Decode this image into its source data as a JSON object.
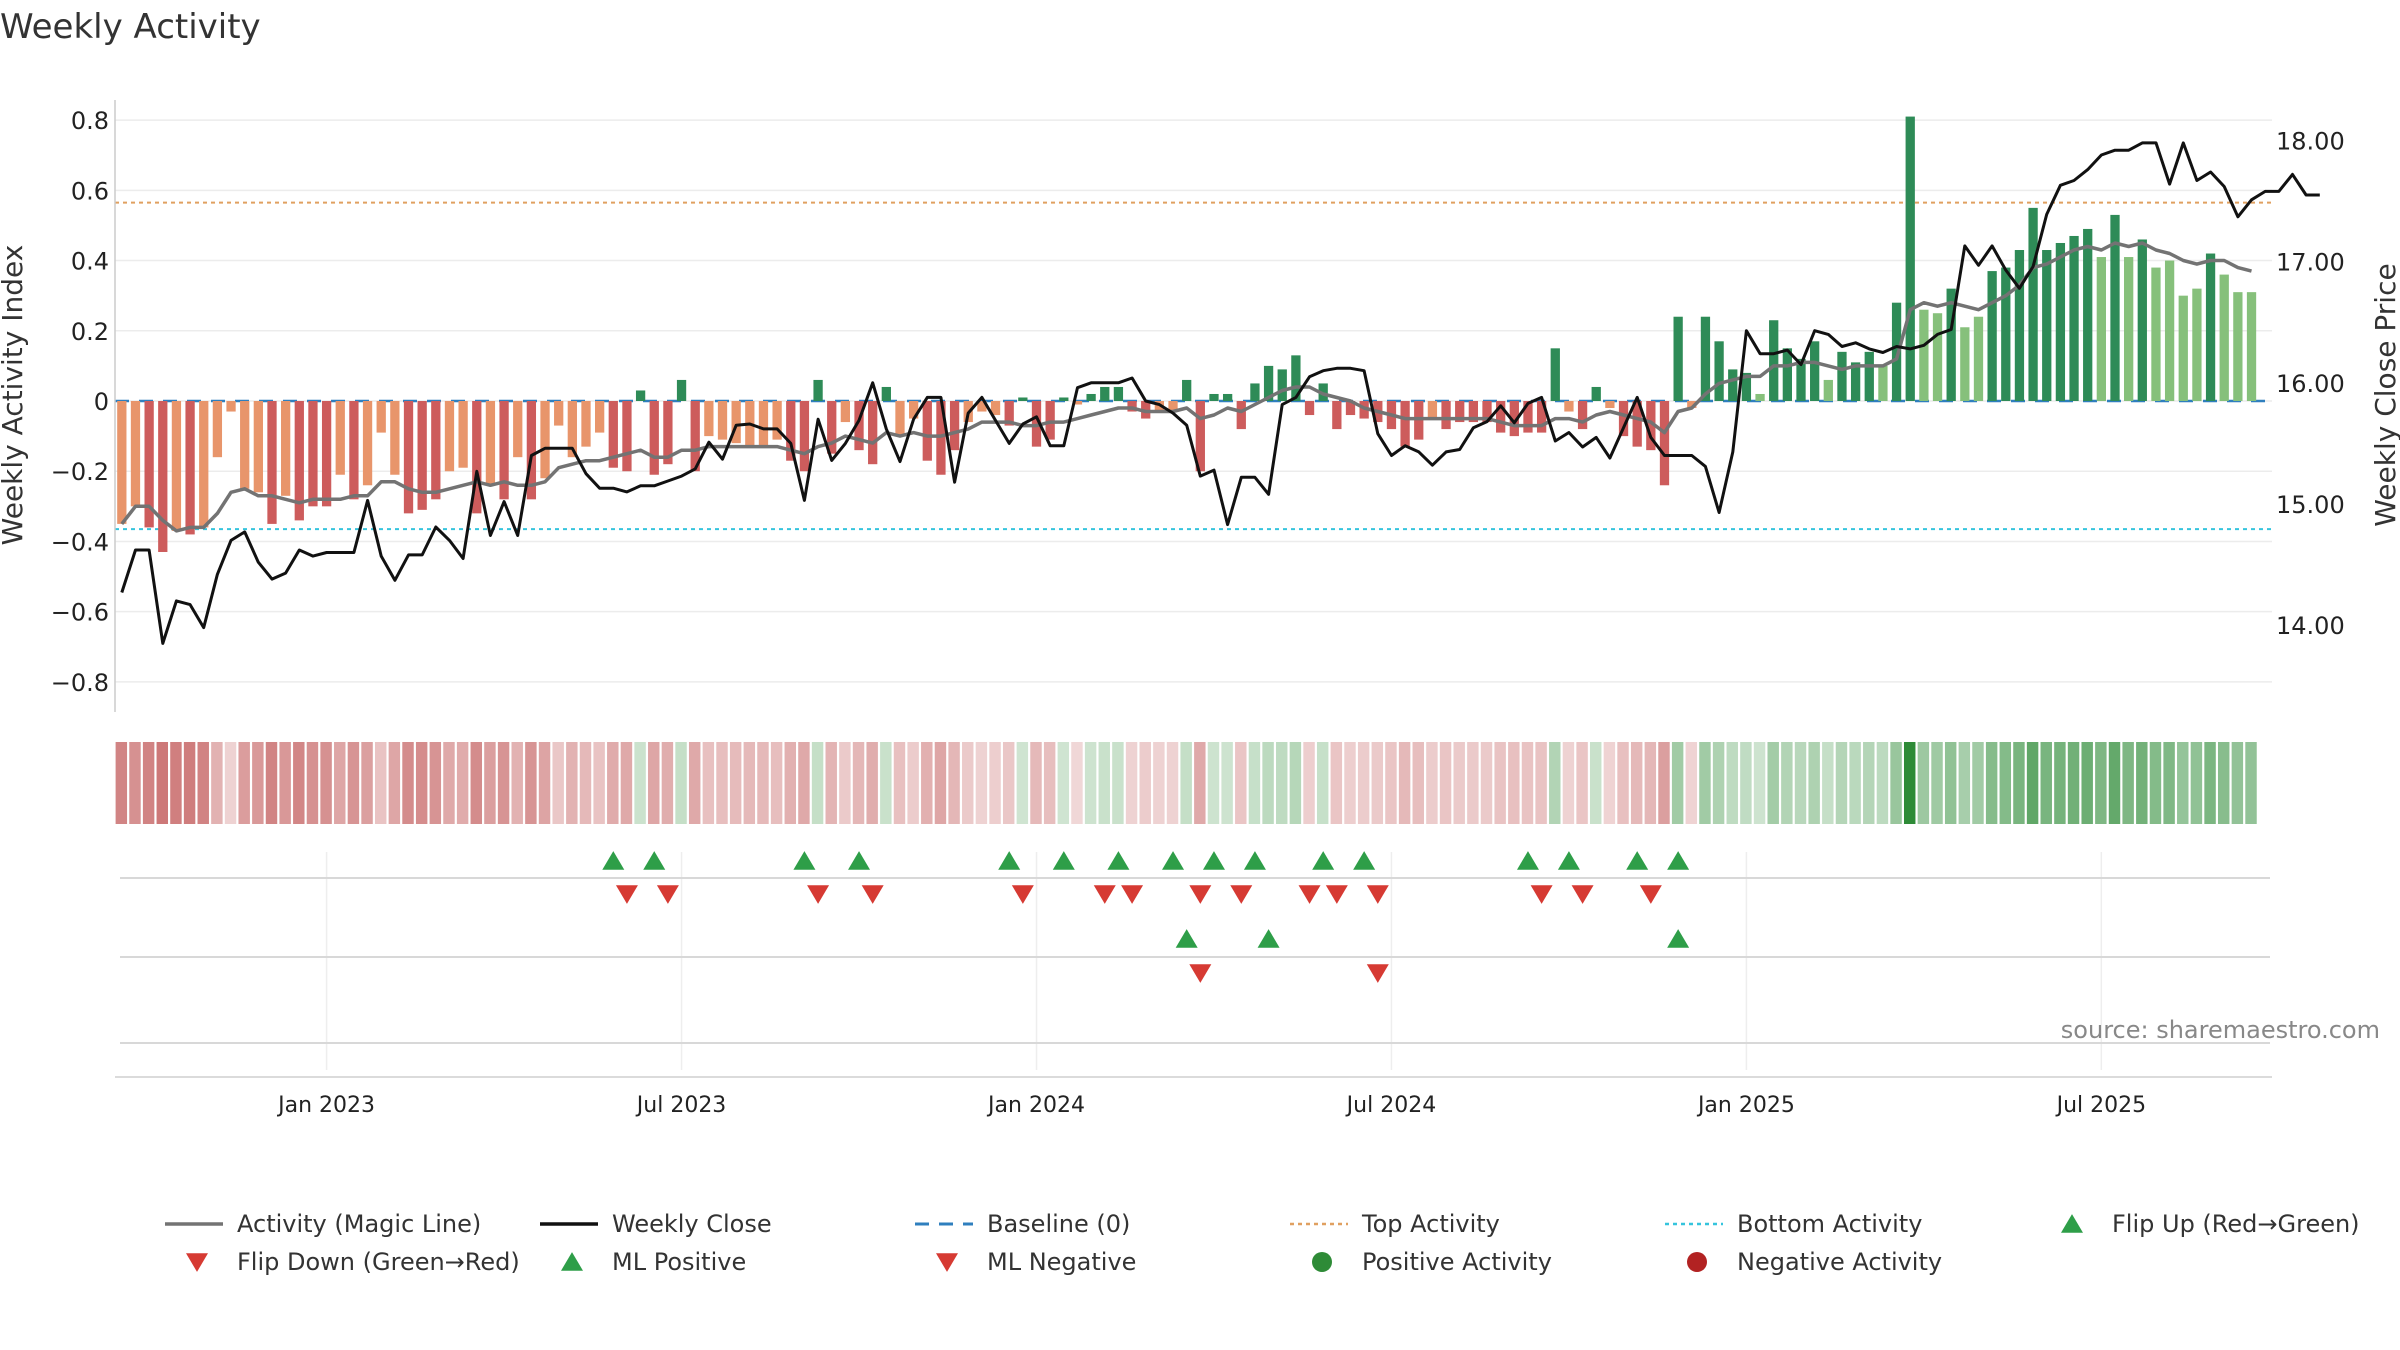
{
  "chart_data": {
    "type": "bar",
    "title": "Weekly Activity",
    "ylabel": "Weekly Activity Index",
    "y2label": "Weekly Close Price",
    "source": "source: sharemaestro.com",
    "ylim": [
      -0.88,
      0.88
    ],
    "y2lim": [
      13.3,
      18.4
    ],
    "yticks": [
      {
        "v": 0.8,
        "label": "0.8"
      },
      {
        "v": 0.6,
        "label": "0.6"
      },
      {
        "v": 0.4,
        "label": "0.4"
      },
      {
        "v": 0.2,
        "label": "0.2"
      },
      {
        "v": 0,
        "label": "0"
      },
      {
        "v": -0.2,
        "label": "−0.2"
      },
      {
        "v": -0.4,
        "label": "−0.4"
      },
      {
        "v": -0.6,
        "label": "−0.6"
      },
      {
        "v": -0.8,
        "label": "−0.8"
      }
    ],
    "y2ticks": [
      {
        "v": 18,
        "label": "18.00"
      },
      {
        "v": 17,
        "label": "17.00"
      },
      {
        "v": 16,
        "label": "16.00"
      },
      {
        "v": 15,
        "label": "15.00"
      },
      {
        "v": 14,
        "label": "14.00"
      }
    ],
    "xticks": [
      {
        "week": 15,
        "label": "Jan 2023"
      },
      {
        "week": 41,
        "label": "Jul 2023"
      },
      {
        "week": 67,
        "label": "Jan 2024"
      },
      {
        "week": 93,
        "label": "Jul 2024"
      },
      {
        "week": 119,
        "label": "Jan 2025"
      },
      {
        "week": 145,
        "label": "Jul 2025"
      }
    ],
    "weeks": 158,
    "activity": [
      -0.35,
      -0.3,
      -0.36,
      -0.43,
      -0.37,
      -0.38,
      -0.36,
      -0.16,
      -0.03,
      -0.25,
      -0.26,
      -0.35,
      -0.27,
      -0.34,
      -0.3,
      -0.3,
      -0.21,
      -0.28,
      -0.24,
      -0.09,
      -0.21,
      -0.32,
      -0.31,
      -0.28,
      -0.2,
      -0.19,
      -0.32,
      -0.24,
      -0.28,
      -0.16,
      -0.28,
      -0.22,
      -0.07,
      -0.16,
      -0.13,
      -0.09,
      -0.19,
      -0.2,
      0.03,
      -0.21,
      -0.18,
      0.06,
      -0.2,
      -0.1,
      -0.11,
      -0.12,
      -0.13,
      -0.13,
      -0.11,
      -0.17,
      -0.2,
      0.06,
      -0.15,
      -0.06,
      -0.14,
      -0.18,
      0.04,
      -0.1,
      -0.05,
      -0.17,
      -0.21,
      -0.14,
      -0.06,
      -0.03,
      -0.04,
      -0.07,
      0.01,
      -0.13,
      -0.11,
      0.01,
      -0.01,
      0.02,
      0.04,
      0.04,
      -0.03,
      -0.05,
      -0.03,
      -0.03,
      0.06,
      -0.2,
      0.02,
      0.02,
      -0.08,
      0.05,
      0.1,
      0.09,
      0.13,
      -0.04,
      0.05,
      -0.08,
      -0.04,
      -0.05,
      -0.06,
      -0.08,
      -0.13,
      -0.11,
      -0.05,
      -0.08,
      -0.06,
      -0.06,
      -0.06,
      -0.09,
      -0.1,
      -0.09,
      -0.09,
      0.15,
      -0.03,
      -0.08,
      0.04,
      -0.02,
      -0.1,
      -0.13,
      -0.14,
      -0.24,
      0.24,
      -0.02,
      0.24,
      0.17,
      0.09,
      0.08,
      0.02,
      0.23,
      0.15,
      0.12,
      0.17,
      0.06,
      0.14,
      0.11,
      0.14,
      0.1,
      0.28,
      0.81,
      0.26,
      0.25,
      0.32,
      0.21,
      0.24,
      0.37,
      0.38,
      0.43,
      0.55,
      0.43,
      0.45,
      0.47,
      0.49,
      0.41,
      0.53,
      0.41,
      0.46,
      0.38,
      0.4,
      0.3,
      0.32,
      0.42,
      0.36,
      0.31,
      0.31
    ],
    "magic_line": [
      -0.35,
      -0.3,
      -0.3,
      -0.34,
      -0.37,
      -0.36,
      -0.36,
      -0.32,
      -0.26,
      -0.25,
      -0.27,
      -0.27,
      -0.28,
      -0.29,
      -0.28,
      -0.28,
      -0.28,
      -0.27,
      -0.27,
      -0.23,
      -0.23,
      -0.25,
      -0.26,
      -0.26,
      -0.25,
      -0.24,
      -0.23,
      -0.24,
      -0.23,
      -0.24,
      -0.24,
      -0.23,
      -0.19,
      -0.18,
      -0.17,
      -0.17,
      -0.16,
      -0.15,
      -0.14,
      -0.16,
      -0.16,
      -0.14,
      -0.14,
      -0.13,
      -0.13,
      -0.13,
      -0.13,
      -0.13,
      -0.13,
      -0.14,
      -0.15,
      -0.13,
      -0.12,
      -0.1,
      -0.11,
      -0.12,
      -0.09,
      -0.1,
      -0.09,
      -0.1,
      -0.1,
      -0.09,
      -0.08,
      -0.06,
      -0.06,
      -0.06,
      -0.07,
      -0.07,
      -0.06,
      -0.06,
      -0.05,
      -0.04,
      -0.03,
      -0.02,
      -0.02,
      -0.03,
      -0.03,
      -0.03,
      -0.02,
      -0.05,
      -0.04,
      -0.02,
      -0.03,
      -0.01,
      0.01,
      0.03,
      0.04,
      0.04,
      0.02,
      0.01,
      0.0,
      -0.02,
      -0.03,
      -0.04,
      -0.05,
      -0.05,
      -0.05,
      -0.05,
      -0.05,
      -0.05,
      -0.05,
      -0.06,
      -0.07,
      -0.07,
      -0.07,
      -0.05,
      -0.05,
      -0.06,
      -0.04,
      -0.03,
      -0.04,
      -0.05,
      -0.06,
      -0.09,
      -0.03,
      -0.02,
      0.02,
      0.05,
      0.06,
      0.07,
      0.07,
      0.1,
      0.1,
      0.11,
      0.11,
      0.1,
      0.09,
      0.1,
      0.1,
      0.1,
      0.12,
      0.26,
      0.28,
      0.27,
      0.28,
      0.27,
      0.26,
      0.28,
      0.3,
      0.33,
      0.38,
      0.39,
      0.41,
      0.43,
      0.44,
      0.43,
      0.45,
      0.44,
      0.45,
      0.43,
      0.42,
      0.4,
      0.39,
      0.4,
      0.4,
      0.38,
      0.37
    ],
    "close": [
      14.27,
      14.62,
      14.62,
      13.85,
      14.2,
      14.17,
      13.98,
      14.42,
      14.7,
      14.77,
      14.52,
      14.38,
      14.43,
      14.62,
      14.57,
      14.6,
      14.6,
      14.6,
      15.03,
      14.57,
      14.37,
      14.58,
      14.58,
      14.81,
      14.7,
      14.55,
      15.27,
      14.74,
      15.02,
      14.74,
      15.4,
      15.46,
      15.46,
      15.46,
      15.25,
      15.13,
      15.13,
      15.1,
      15.15,
      15.15,
      15.19,
      15.23,
      15.29,
      15.51,
      15.37,
      15.65,
      15.66,
      15.62,
      15.62,
      15.5,
      15.03,
      15.7,
      15.36,
      15.5,
      15.69,
      16.0,
      15.62,
      15.35,
      15.7,
      15.88,
      15.88,
      15.18,
      15.75,
      15.88,
      15.69,
      15.5,
      15.66,
      15.72,
      15.48,
      15.48,
      15.96,
      16.0,
      16.0,
      16.0,
      16.04,
      15.85,
      15.82,
      15.75,
      15.65,
      15.23,
      15.28,
      14.83,
      15.22,
      15.22,
      15.08,
      15.82,
      15.88,
      16.05,
      16.1,
      16.12,
      16.12,
      16.1,
      15.58,
      15.4,
      15.48,
      15.43,
      15.32,
      15.43,
      15.45,
      15.63,
      15.68,
      15.81,
      15.67,
      15.83,
      15.88,
      15.52,
      15.59,
      15.47,
      15.55,
      15.38,
      15.63,
      15.88,
      15.55,
      15.4,
      15.4,
      15.4,
      15.31,
      14.93,
      15.43,
      16.43,
      16.24,
      16.24,
      16.27,
      16.15,
      16.43,
      16.4,
      16.3,
      16.33,
      16.28,
      16.25,
      16.3,
      16.28,
      16.31,
      16.4,
      16.44,
      17.13,
      16.97,
      17.13,
      16.93,
      16.78,
      16.96,
      17.39,
      17.63,
      17.67,
      17.76,
      17.88,
      17.92,
      17.92,
      17.98,
      17.98,
      17.64,
      17.98,
      17.67,
      17.74,
      17.62,
      17.37,
      17.51,
      17.58,
      17.58,
      17.72,
      17.55,
      17.55
    ],
    "top_activity": 0.565,
    "bottom_activity": -0.365,
    "flip_up_weeks": [
      36,
      39,
      50,
      54,
      65,
      69,
      73,
      77,
      80,
      83,
      88,
      91,
      103,
      106,
      111,
      114
    ],
    "flip_down_weeks": [
      37,
      40,
      51,
      55,
      66,
      72,
      74,
      79,
      82,
      87,
      89,
      92,
      104,
      107,
      112
    ],
    "ml_positive_weeks": [
      78,
      84,
      114
    ],
    "ml_negative_weeks": [
      79,
      92
    ],
    "legend": [
      {
        "label": "Activity (Magic Line)",
        "kind": "line",
        "color": "#737373"
      },
      {
        "label": "Weekly Close",
        "kind": "line",
        "color": "#111111"
      },
      {
        "label": "Baseline (0)",
        "kind": "dash",
        "color": "#2f7fbe"
      },
      {
        "label": "Top Activity",
        "kind": "dot",
        "color": "#e0a060"
      },
      {
        "label": "Bottom Activity",
        "kind": "dot",
        "color": "#35c4dd"
      },
      {
        "label": "Flip Up (Red→Green)",
        "kind": "tri-up",
        "color": "#2e9e48"
      },
      {
        "label": "Flip Down (Green→Red)",
        "kind": "tri-down",
        "color": "#d63a33"
      },
      {
        "label": "ML Positive",
        "kind": "tri-up",
        "color": "#2e9e48"
      },
      {
        "label": "ML Negative",
        "kind": "tri-down",
        "color": "#d63a33"
      },
      {
        "label": "Positive Activity",
        "kind": "circle",
        "color": "#2e8b37"
      },
      {
        "label": "Negative Activity",
        "kind": "circle",
        "color": "#b22222"
      }
    ],
    "colors": {
      "pos_strong": "#2e8b57",
      "pos_light": "#86c07b",
      "neg_strong": "#cd5c5c",
      "neg_light": "#e8956b",
      "grid": "#ececec",
      "axis": "#333333"
    }
  }
}
